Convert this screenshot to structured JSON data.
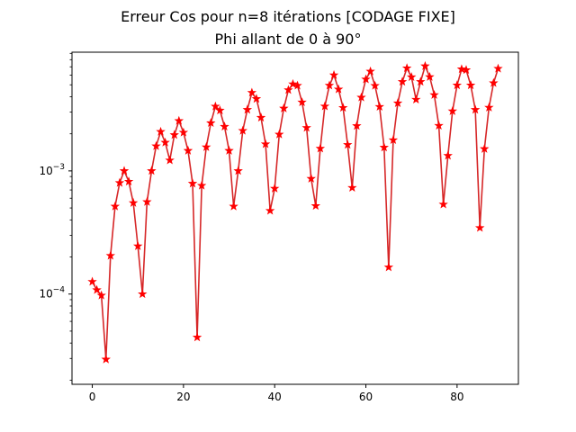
{
  "chart_data": {
    "type": "line",
    "title": "Erreur Cos pour n=8 itérations [CODAGE FIXE]",
    "subtitle": "Phi allant de 0 à 90°",
    "xlabel": "",
    "ylabel": "",
    "xlim": [
      -4.45,
      93.45
    ],
    "ylim": [
      1.85e-05,
      0.0092
    ],
    "yscale": "log",
    "grid": false,
    "x_ticks": [
      0,
      20,
      40,
      60,
      80
    ],
    "x_tick_labels": [
      "0",
      "20",
      "40",
      "60",
      "80"
    ],
    "y_ticks": [
      0.0001,
      0.001
    ],
    "y_tick_labels": [
      {
        "base": "10",
        "exp": "−4"
      },
      {
        "base": "10",
        "exp": "−3"
      }
    ],
    "series": [
      {
        "color": "#ff0000",
        "line_color": "#d62728",
        "marker": "star",
        "x": [
          0,
          1,
          2,
          3,
          4,
          5,
          6,
          7,
          8,
          9,
          10,
          11,
          12,
          13,
          14,
          15,
          16,
          17,
          18,
          19,
          20,
          21,
          22,
          23,
          24,
          25,
          26,
          27,
          28,
          29,
          30,
          31,
          32,
          33,
          34,
          35,
          36,
          37,
          38,
          39,
          40,
          41,
          42,
          43,
          44,
          45,
          46,
          47,
          48,
          49,
          50,
          51,
          52,
          53,
          54,
          55,
          56,
          57,
          58,
          59,
          60,
          61,
          62,
          63,
          64,
          65,
          66,
          67,
          68,
          69,
          70,
          71,
          72,
          73,
          74,
          75,
          76,
          77,
          78,
          79,
          80,
          81,
          82,
          83,
          84,
          85,
          86,
          87,
          88,
          89
        ],
        "y": [
          0.000126,
          0.000108,
          9.75e-05,
          2.95e-05,
          0.000205,
          0.000515,
          0.0008,
          0.001,
          0.00082,
          0.00055,
          0.000245,
          0.0001,
          0.00056,
          0.001,
          0.00159,
          0.00208,
          0.0017,
          0.00122,
          0.00196,
          0.00255,
          0.00205,
          0.00146,
          0.00079,
          4.45e-05,
          0.00076,
          0.00156,
          0.00245,
          0.00334,
          0.0031,
          0.00229,
          0.00146,
          0.000515,
          0.001,
          0.00212,
          0.00314,
          0.00432,
          0.00385,
          0.00271,
          0.00165,
          0.000475,
          0.00072,
          0.00198,
          0.00322,
          0.00454,
          0.00507,
          0.00493,
          0.00361,
          0.00224,
          0.000865,
          0.00052,
          0.00152,
          0.00335,
          0.00494,
          0.006,
          0.0046,
          0.00326,
          0.00163,
          0.00073,
          0.00232,
          0.00395,
          0.00555,
          0.00643,
          0.00492,
          0.00332,
          0.00155,
          0.000165,
          0.00178,
          0.00355,
          0.0053,
          0.00683,
          0.00578,
          0.0038,
          0.0053,
          0.0071,
          0.0058,
          0.00414,
          0.00233,
          0.000535,
          0.00133,
          0.00306,
          0.00496,
          0.0067,
          0.0066,
          0.00496,
          0.00314,
          0.000345,
          0.00151,
          0.00327,
          0.00517,
          0.00677
        ]
      }
    ]
  }
}
